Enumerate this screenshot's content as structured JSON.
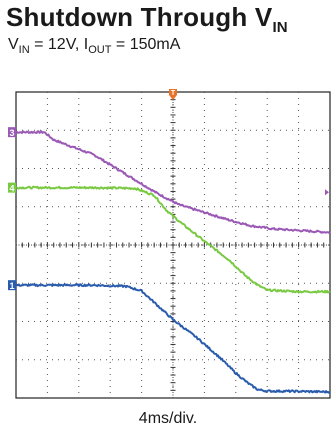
{
  "chart_data": {
    "type": "line",
    "title": {
      "main": "Shutdown Through V",
      "sub": "IN"
    },
    "subtitle": {
      "vin_label": "V",
      "vin_sub": "IN",
      "vin_value": " = 12V, I",
      "iout_sub": "OUT",
      "iout_value": " = 150mA"
    },
    "xlabel": "4ms/div.",
    "grid": true,
    "x_divisions": 10,
    "y_divisions": 8,
    "xlim": [
      0,
      10
    ],
    "ylim": [
      0,
      8
    ],
    "trigger_marker": "T",
    "series": [
      {
        "name": "3",
        "color": "#9b59b6",
        "marker": "3",
        "x": [
          0,
          0.2,
          0.9,
          1.2,
          2.5,
          3.5,
          4.5,
          5.2,
          6.0,
          6.8,
          7.5,
          8.2,
          9.0,
          10.0
        ],
        "y": [
          6.95,
          6.95,
          6.95,
          6.75,
          6.35,
          5.85,
          5.35,
          5.05,
          4.85,
          4.65,
          4.5,
          4.42,
          4.38,
          4.33
        ]
      },
      {
        "name": "4",
        "color": "#7ac943",
        "marker": "4",
        "x": [
          0,
          2.5,
          3.8,
          4.4,
          4.8,
          5.3,
          6.0,
          6.8,
          7.3,
          7.7,
          8.0,
          8.5,
          9.0,
          10.0
        ],
        "y": [
          5.5,
          5.5,
          5.48,
          5.3,
          4.9,
          4.55,
          4.1,
          3.6,
          3.2,
          2.95,
          2.82,
          2.8,
          2.78,
          2.78
        ]
      },
      {
        "name": "1",
        "color": "#2a5cad",
        "marker": "1",
        "x": [
          0,
          2.5,
          3.5,
          4.0,
          4.4,
          5.0,
          5.8,
          6.5,
          7.0,
          7.4,
          7.7,
          8.0,
          8.5,
          10.0
        ],
        "y": [
          2.95,
          2.95,
          2.92,
          2.8,
          2.5,
          2.05,
          1.55,
          1.05,
          0.65,
          0.38,
          0.22,
          0.18,
          0.18,
          0.16
        ]
      }
    ]
  }
}
